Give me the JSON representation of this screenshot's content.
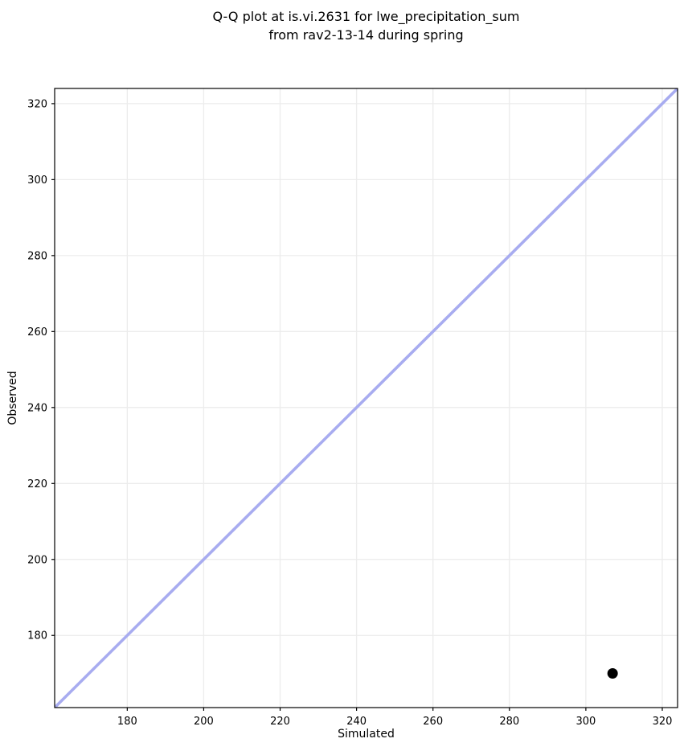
{
  "chart_data": {
    "type": "scatter",
    "title": "Q-Q plot at is.vi.2631 for lwe_precipitation_sum\nfrom rav2-13-14 during spring",
    "xlabel": "Simulated",
    "ylabel": "Observed",
    "xlim": [
      161,
      324
    ],
    "ylim": [
      161,
      324
    ],
    "xticks": [
      180,
      200,
      220,
      240,
      260,
      280,
      300,
      320
    ],
    "yticks": [
      180,
      200,
      220,
      240,
      260,
      280,
      300,
      320
    ],
    "grid": true,
    "legend": "none",
    "points": [
      {
        "x": 307,
        "y": 170
      }
    ],
    "reference_line": {
      "name": "identity-line",
      "from": [
        161,
        161
      ],
      "to": [
        324,
        324
      ]
    },
    "colors": {
      "reference_line": "#a8acf0",
      "point": "#000000",
      "grid": "#ececec",
      "spine": "#000000",
      "background": "#ffffff"
    }
  }
}
